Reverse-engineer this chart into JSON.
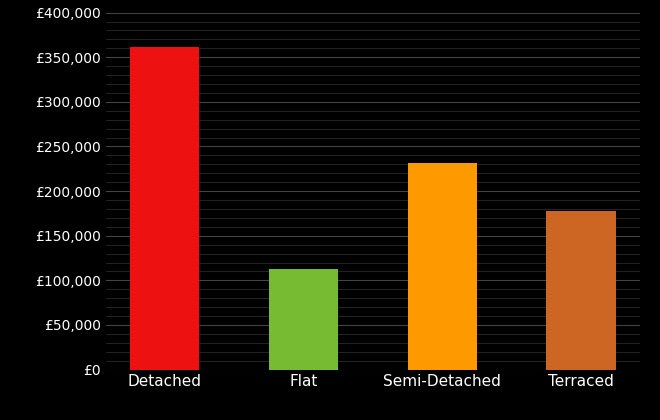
{
  "categories": [
    "Detached",
    "Flat",
    "Semi-Detached",
    "Terraced"
  ],
  "values": [
    362000,
    113000,
    232000,
    178000
  ],
  "bar_colors": [
    "#ee1111",
    "#77bb33",
    "#ff9900",
    "#cc6622"
  ],
  "background_color": "#000000",
  "text_color": "#ffffff",
  "grid_color": "#444444",
  "minor_grid_color": "#333333",
  "ylim": [
    0,
    400000
  ],
  "yticks": [
    0,
    50000,
    100000,
    150000,
    200000,
    250000,
    300000,
    350000,
    400000
  ],
  "tick_fontsize": 10,
  "label_fontsize": 11,
  "bar_width": 0.5
}
